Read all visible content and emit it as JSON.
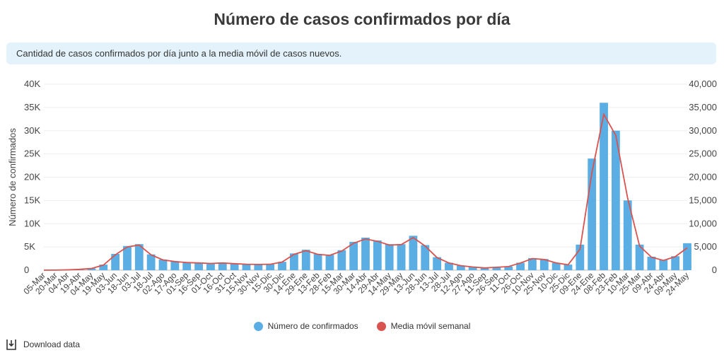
{
  "title": "Número de casos confirmados por día",
  "subtitle": "Cantidad de casos confirmados por día junto a la media móvil de casos nuevos.",
  "download_label": "Download data",
  "colors": {
    "bars": "#5aaee3",
    "line": "#d9534f",
    "subtitle_bg": "#e3f2fb"
  },
  "chart_data": {
    "type": "bar",
    "ylabel": "Número de confirmados",
    "ylim": [
      0,
      40000
    ],
    "left_ticks": [
      "0",
      "5K",
      "10K",
      "15K",
      "20K",
      "25K",
      "30K",
      "35K",
      "40K"
    ],
    "right_ticks": [
      "0",
      "5,000",
      "10,000",
      "15,000",
      "20,000",
      "25,000",
      "30,000",
      "35,000",
      "40,000"
    ],
    "tick_values": [
      0,
      5000,
      10000,
      15000,
      20000,
      25000,
      30000,
      35000,
      40000
    ],
    "x_dates": [
      "05-Mar",
      "20-Mar",
      "04-Abr",
      "19-Abr",
      "04-May",
      "19-May",
      "03-Jun",
      "18-Jun",
      "03-Jul",
      "18-Jul",
      "02-Ago",
      "17-Ago",
      "01-Sep",
      "16-Sep",
      "01-Oct",
      "16-Oct",
      "31-Oct",
      "15-Nov",
      "30-Nov",
      "15-Dic",
      "30-Dic",
      "14-Ene",
      "29-Ene",
      "13-Feb",
      "28-Feb",
      "15-Mar",
      "30-Mar",
      "14-Abr",
      "29-Abr",
      "14-May",
      "29-May",
      "13-Jun",
      "28-Jun",
      "13-Jul",
      "28-Jul",
      "12-Ago",
      "27-Ago",
      "11-Sep",
      "26-Sep",
      "11-Oct",
      "26-Oct",
      "10-Nov",
      "25-Nov",
      "10-Dic",
      "25-Dic",
      "09-Ene",
      "24-Ene",
      "08-Feb",
      "23-Feb",
      "10-Mar",
      "25-Mar",
      "09-Abr",
      "24-Abr",
      "09-May",
      "24-May"
    ],
    "legend_position": "bottom",
    "series": [
      {
        "name": "Número de confirmados",
        "kind": "bar",
        "values": [
          0,
          10,
          80,
          200,
          380,
          1200,
          3500,
          5200,
          5600,
          3400,
          2300,
          1900,
          1700,
          1600,
          1500,
          1600,
          1450,
          1300,
          1250,
          1300,
          1800,
          3600,
          4400,
          3500,
          3300,
          4300,
          6100,
          7000,
          6400,
          5600,
          5600,
          7400,
          5400,
          2800,
          1600,
          1000,
          700,
          500,
          650,
          800,
          1600,
          2600,
          2400,
          1600,
          1200,
          5500,
          24000,
          36000,
          30000,
          15000,
          5500,
          2900,
          2200,
          3000,
          5800
        ]
      },
      {
        "name": "Media móvil semanal",
        "kind": "line",
        "values": [
          0,
          10,
          75,
          190,
          360,
          1100,
          3300,
          5000,
          5400,
          3300,
          2200,
          1850,
          1650,
          1550,
          1450,
          1550,
          1400,
          1270,
          1230,
          1280,
          1750,
          3400,
          4200,
          3400,
          3200,
          4100,
          5800,
          6700,
          6200,
          5400,
          5500,
          7000,
          5200,
          2700,
          1550,
          980,
          680,
          490,
          630,
          780,
          1550,
          2500,
          2300,
          1550,
          1150,
          4500,
          21000,
          33500,
          29000,
          15500,
          5200,
          2800,
          2100,
          2900,
          4800
        ]
      }
    ]
  }
}
